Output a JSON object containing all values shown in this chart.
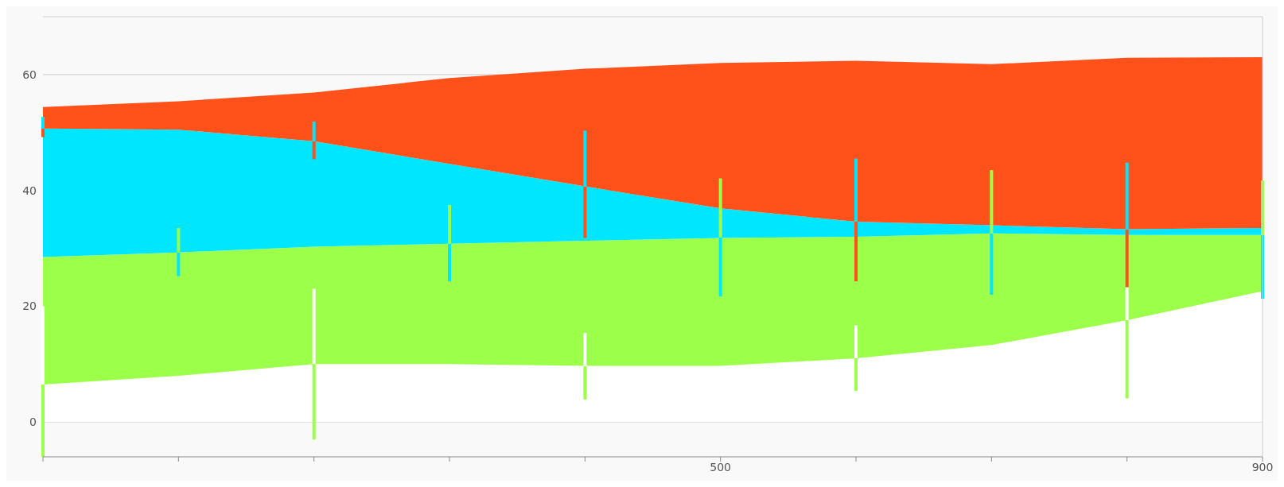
{
  "chart_data": {
    "type": "area",
    "stacked": true,
    "x": [
      0,
      100,
      200,
      300,
      400,
      500,
      600,
      700,
      800,
      900
    ],
    "xlim": [
      0,
      900
    ],
    "xticks": [
      {
        "value": 0,
        "label": null
      },
      {
        "value": 100,
        "label": null
      },
      {
        "value": 200,
        "label": null
      },
      {
        "value": 300,
        "label": null
      },
      {
        "value": 400,
        "label": null
      },
      500,
      {
        "value": 600,
        "label": null
      },
      {
        "value": 700,
        "label": null
      },
      {
        "value": 800,
        "label": null
      },
      900
    ],
    "ylim": [
      -6,
      70
    ],
    "yticks": [
      0,
      20,
      40,
      60
    ],
    "grid": "y",
    "legend": false,
    "series": [
      {
        "color": "#ffffff",
        "values": [
          6.5,
          8,
          10,
          10,
          9.7,
          9.7,
          11,
          13.3,
          17.6,
          22.6
        ],
        "errors": [
          [
            -6,
            20
          ],
          null,
          [
            -3,
            23
          ],
          null,
          [
            3.9,
            15.4
          ],
          null,
          [
            5.4,
            16.7
          ],
          null,
          [
            4.1,
            23.3
          ],
          null
        ]
      },
      {
        "color": "#9cff4a",
        "values": [
          22,
          21.3,
          20.3,
          20.8,
          21.6,
          22.1,
          21,
          19.3,
          14.7,
          9.7
        ],
        "errors": [
          null,
          [
            25.2,
            33.5
          ],
          null,
          [
            24.3,
            37.5
          ],
          null,
          [
            21.7,
            42.1
          ],
          null,
          [
            22,
            43.5
          ],
          null,
          [
            21.3,
            41.7
          ]
        ]
      },
      {
        "color": "#00e6ff",
        "values": [
          22.2,
          21.2,
          18.2,
          13.8,
          9.4,
          5.1,
          2.6,
          1.4,
          1,
          1.2
        ],
        "errors": [
          [
            49.2,
            52.7
          ],
          null,
          [
            45.4,
            51.9
          ],
          null,
          [
            31.8,
            50.3
          ],
          null,
          [
            24.3,
            45.5
          ],
          null,
          [
            23.3,
            44.8
          ],
          null
        ]
      },
      {
        "color": "#ff5119",
        "values": [
          3.7,
          4.9,
          8.4,
          14.8,
          20.3,
          25.1,
          27.8,
          27.8,
          29.6,
          29.5
        ]
      }
    ]
  }
}
